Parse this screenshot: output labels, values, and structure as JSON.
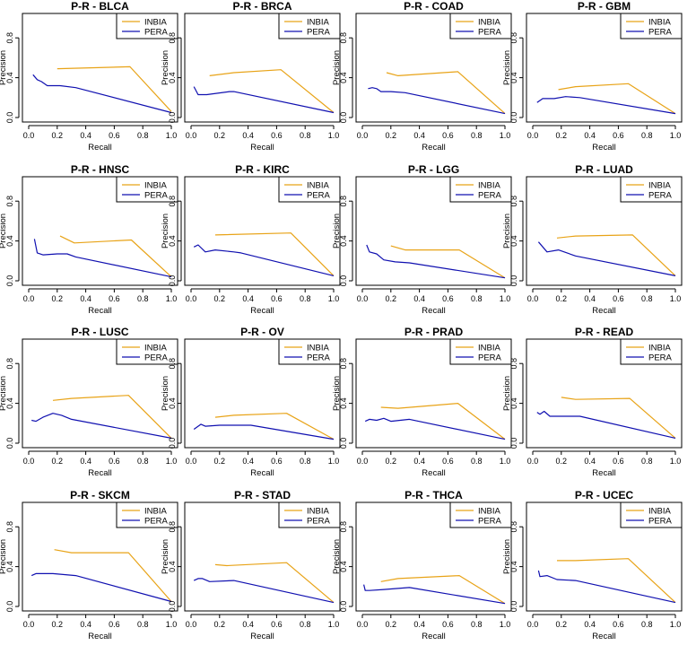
{
  "colors": {
    "inbia": "#E8A317",
    "pera": "#1010B0",
    "axis": "#000000"
  },
  "chart_data": [
    {
      "type": "line",
      "title": "P-R - BLCA",
      "xlabel": "Recall",
      "ylabel": "Precision",
      "xlim": [
        0,
        1
      ],
      "ylim": [
        0,
        1
      ],
      "xticks": [
        "0.0",
        "0.2",
        "0.4",
        "0.6",
        "0.8",
        "1.0"
      ],
      "yticks": [
        "0.0",
        "0.4",
        "0.8"
      ],
      "legend": [
        "INBIA",
        "PERA"
      ],
      "legend_position": "top-right",
      "series": [
        {
          "name": "INBIA",
          "x": [
            0.2,
            0.71,
            1.0
          ],
          "y": [
            0.49,
            0.51,
            0.06
          ]
        },
        {
          "name": "PERA",
          "x": [
            0.03,
            0.06,
            0.09,
            0.13,
            0.22,
            0.33,
            1.0
          ],
          "y": [
            0.43,
            0.38,
            0.36,
            0.32,
            0.32,
            0.3,
            0.05
          ]
        }
      ]
    },
    {
      "type": "line",
      "title": "P-R - BRCA",
      "xlabel": "Recall",
      "ylabel": "Precision",
      "xlim": [
        0,
        1
      ],
      "ylim": [
        0,
        1
      ],
      "xticks": [
        "0.0",
        "0.2",
        "0.4",
        "0.6",
        "0.8",
        "1.0"
      ],
      "yticks": [
        "0.0",
        "0.4",
        "0.8"
      ],
      "legend": [
        "INBIA",
        "PERA"
      ],
      "legend_position": "top-right",
      "series": [
        {
          "name": "INBIA",
          "x": [
            0.13,
            0.3,
            0.63,
            1.0
          ],
          "y": [
            0.42,
            0.45,
            0.48,
            0.05
          ]
        },
        {
          "name": "PERA",
          "x": [
            0.02,
            0.05,
            0.11,
            0.27,
            0.3,
            1.0
          ],
          "y": [
            0.31,
            0.23,
            0.23,
            0.26,
            0.26,
            0.05
          ]
        }
      ]
    },
    {
      "type": "line",
      "title": "P-R - COAD",
      "xlabel": "Recall",
      "ylabel": "Precision",
      "xlim": [
        0,
        1
      ],
      "ylim": [
        0,
        1
      ],
      "xticks": [
        "0.0",
        "0.2",
        "0.4",
        "0.6",
        "0.8",
        "1.0"
      ],
      "yticks": [
        "0.0",
        "0.4",
        "0.8"
      ],
      "legend": [
        "INBIA",
        "PERA"
      ],
      "legend_position": "top-right",
      "series": [
        {
          "name": "INBIA",
          "x": [
            0.17,
            0.25,
            0.67,
            1.0
          ],
          "y": [
            0.45,
            0.42,
            0.46,
            0.04
          ]
        },
        {
          "name": "PERA",
          "x": [
            0.04,
            0.07,
            0.1,
            0.13,
            0.2,
            0.3,
            1.0
          ],
          "y": [
            0.29,
            0.3,
            0.29,
            0.26,
            0.26,
            0.25,
            0.04
          ]
        }
      ]
    },
    {
      "type": "line",
      "title": "P-R - GBM",
      "xlabel": "Recall",
      "ylabel": "Precision",
      "xlim": [
        0,
        1
      ],
      "ylim": [
        0,
        1
      ],
      "xticks": [
        "0.0",
        "0.2",
        "0.4",
        "0.6",
        "0.8",
        "1.0"
      ],
      "yticks": [
        "0.0",
        "0.4",
        "0.8"
      ],
      "legend": [
        "INBIA",
        "PERA"
      ],
      "legend_position": "top-right",
      "series": [
        {
          "name": "INBIA",
          "x": [
            0.18,
            0.3,
            0.67,
            1.0
          ],
          "y": [
            0.28,
            0.31,
            0.34,
            0.04
          ]
        },
        {
          "name": "PERA",
          "x": [
            0.03,
            0.07,
            0.15,
            0.23,
            0.33,
            1.0
          ],
          "y": [
            0.15,
            0.19,
            0.19,
            0.21,
            0.2,
            0.04
          ]
        }
      ]
    },
    {
      "type": "line",
      "title": "P-R - HNSC",
      "xlabel": "Recall",
      "ylabel": "Precision",
      "xlim": [
        0,
        1
      ],
      "ylim": [
        0,
        1
      ],
      "xticks": [
        "0.0",
        "0.2",
        "0.4",
        "0.6",
        "0.8",
        "1.0"
      ],
      "yticks": [
        "0.0",
        "0.4",
        "0.8"
      ],
      "legend": [
        "INBIA",
        "PERA"
      ],
      "legend_position": "top-right",
      "series": [
        {
          "name": "INBIA",
          "x": [
            0.22,
            0.32,
            0.72,
            1.0
          ],
          "y": [
            0.45,
            0.38,
            0.41,
            0.04
          ]
        },
        {
          "name": "PERA",
          "x": [
            0.04,
            0.06,
            0.1,
            0.2,
            0.27,
            0.33,
            1.0
          ],
          "y": [
            0.42,
            0.28,
            0.26,
            0.27,
            0.27,
            0.24,
            0.04
          ]
        }
      ]
    },
    {
      "type": "line",
      "title": "P-R - KIRC",
      "xlabel": "Recall",
      "ylabel": "Precision",
      "xlim": [
        0,
        1
      ],
      "ylim": [
        0,
        1
      ],
      "xticks": [
        "0.0",
        "0.2",
        "0.4",
        "0.6",
        "0.8",
        "1.0"
      ],
      "yticks": [
        "0.0",
        "0.4",
        "0.8"
      ],
      "legend": [
        "INBIA",
        "PERA"
      ],
      "legend_position": "top-right",
      "series": [
        {
          "name": "INBIA",
          "x": [
            0.17,
            0.7,
            1.0
          ],
          "y": [
            0.46,
            0.48,
            0.05
          ]
        },
        {
          "name": "PERA",
          "x": [
            0.02,
            0.05,
            0.1,
            0.17,
            0.3,
            0.35,
            1.0
          ],
          "y": [
            0.34,
            0.36,
            0.29,
            0.31,
            0.29,
            0.28,
            0.05
          ]
        }
      ]
    },
    {
      "type": "line",
      "title": "P-R - LGG",
      "xlabel": "Recall",
      "ylabel": "Precision",
      "xlim": [
        0,
        1
      ],
      "ylim": [
        0,
        1
      ],
      "xticks": [
        "0.0",
        "0.2",
        "0.4",
        "0.6",
        "0.8",
        "1.0"
      ],
      "yticks": [
        "0.0",
        "0.4",
        "0.8"
      ],
      "legend": [
        "INBIA",
        "PERA"
      ],
      "legend_position": "top-right",
      "series": [
        {
          "name": "INBIA",
          "x": [
            0.2,
            0.3,
            0.68,
            1.0
          ],
          "y": [
            0.35,
            0.31,
            0.31,
            0.03
          ]
        },
        {
          "name": "PERA",
          "x": [
            0.03,
            0.05,
            0.1,
            0.15,
            0.23,
            0.33,
            1.0
          ],
          "y": [
            0.36,
            0.29,
            0.27,
            0.21,
            0.19,
            0.18,
            0.03
          ]
        }
      ]
    },
    {
      "type": "line",
      "title": "P-R - LUAD",
      "xlabel": "Recall",
      "ylabel": "Precision",
      "xlim": [
        0,
        1
      ],
      "ylim": [
        0,
        1
      ],
      "xticks": [
        "0.0",
        "0.2",
        "0.4",
        "0.6",
        "0.8",
        "1.0"
      ],
      "yticks": [
        "0.0",
        "0.4",
        "0.8"
      ],
      "legend": [
        "INBIA",
        "PERA"
      ],
      "legend_position": "top-right",
      "series": [
        {
          "name": "INBIA",
          "x": [
            0.17,
            0.3,
            0.7,
            1.0
          ],
          "y": [
            0.43,
            0.45,
            0.46,
            0.05
          ]
        },
        {
          "name": "PERA",
          "x": [
            0.04,
            0.1,
            0.18,
            0.3,
            1.0
          ],
          "y": [
            0.39,
            0.29,
            0.31,
            0.25,
            0.05
          ]
        }
      ]
    },
    {
      "type": "line",
      "title": "P-R - LUSC",
      "xlabel": "Recall",
      "ylabel": "Precision",
      "xlim": [
        0,
        1
      ],
      "ylim": [
        0,
        1
      ],
      "xticks": [
        "0.0",
        "0.2",
        "0.4",
        "0.6",
        "0.8",
        "1.0"
      ],
      "yticks": [
        "0.0",
        "0.4",
        "0.8"
      ],
      "legend": [
        "INBIA",
        "PERA"
      ],
      "legend_position": "top-right",
      "series": [
        {
          "name": "INBIA",
          "x": [
            0.17,
            0.3,
            0.7,
            1.0
          ],
          "y": [
            0.43,
            0.45,
            0.48,
            0.05
          ]
        },
        {
          "name": "PERA",
          "x": [
            0.02,
            0.05,
            0.1,
            0.17,
            0.23,
            0.3,
            1.0
          ],
          "y": [
            0.23,
            0.22,
            0.26,
            0.3,
            0.28,
            0.24,
            0.05
          ]
        }
      ]
    },
    {
      "type": "line",
      "title": "P-R - OV",
      "xlabel": "Recall",
      "ylabel": "Precision",
      "xlim": [
        0,
        1
      ],
      "ylim": [
        0,
        1
      ],
      "xticks": [
        "0.0",
        "0.2",
        "0.4",
        "0.6",
        "0.8",
        "1.0"
      ],
      "yticks": [
        "0.0",
        "0.4",
        "0.8"
      ],
      "legend": [
        "INBIA",
        "PERA"
      ],
      "legend_position": "top-right",
      "series": [
        {
          "name": "INBIA",
          "x": [
            0.17,
            0.3,
            0.67,
            1.0
          ],
          "y": [
            0.26,
            0.28,
            0.3,
            0.04
          ]
        },
        {
          "name": "PERA",
          "x": [
            0.02,
            0.07,
            0.1,
            0.2,
            0.27,
            0.42,
            1.0
          ],
          "y": [
            0.14,
            0.19,
            0.17,
            0.18,
            0.18,
            0.18,
            0.04
          ]
        }
      ]
    },
    {
      "type": "line",
      "title": "P-R - PRAD",
      "xlabel": "Recall",
      "ylabel": "Precision",
      "xlim": [
        0,
        1
      ],
      "ylim": [
        0,
        1
      ],
      "xticks": [
        "0.0",
        "0.2",
        "0.4",
        "0.6",
        "0.8",
        "1.0"
      ],
      "yticks": [
        "0.0",
        "0.4",
        "0.8"
      ],
      "legend": [
        "INBIA",
        "PERA"
      ],
      "legend_position": "top-right",
      "series": [
        {
          "name": "INBIA",
          "x": [
            0.13,
            0.25,
            0.67,
            1.0
          ],
          "y": [
            0.36,
            0.35,
            0.4,
            0.04
          ]
        },
        {
          "name": "PERA",
          "x": [
            0.02,
            0.05,
            0.1,
            0.15,
            0.2,
            0.33,
            1.0
          ],
          "y": [
            0.22,
            0.24,
            0.23,
            0.25,
            0.22,
            0.24,
            0.04
          ]
        }
      ]
    },
    {
      "type": "line",
      "title": "P-R - READ",
      "xlabel": "Recall",
      "ylabel": "Precision",
      "xlim": [
        0,
        1
      ],
      "ylim": [
        0,
        1
      ],
      "xticks": [
        "0.0",
        "0.2",
        "0.4",
        "0.6",
        "0.8",
        "1.0"
      ],
      "yticks": [
        "0.0",
        "0.4",
        "0.8"
      ],
      "legend": [
        "INBIA",
        "PERA"
      ],
      "legend_position": "top-right",
      "series": [
        {
          "name": "INBIA",
          "x": [
            0.2,
            0.3,
            0.68,
            1.0
          ],
          "y": [
            0.46,
            0.44,
            0.45,
            0.05
          ]
        },
        {
          "name": "PERA",
          "x": [
            0.03,
            0.05,
            0.08,
            0.12,
            0.2,
            0.33,
            1.0
          ],
          "y": [
            0.31,
            0.29,
            0.32,
            0.27,
            0.27,
            0.27,
            0.05
          ]
        }
      ]
    },
    {
      "type": "line",
      "title": "P-R - SKCM",
      "xlabel": "Recall",
      "ylabel": "Precision",
      "xlim": [
        0,
        1
      ],
      "ylim": [
        0,
        1
      ],
      "xticks": [
        "0.0",
        "0.2",
        "0.4",
        "0.6",
        "0.8",
        "1.0"
      ],
      "yticks": [
        "0.0",
        "0.4",
        "0.8"
      ],
      "legend": [
        "INBIA",
        "PERA"
      ],
      "legend_position": "top-right",
      "series": [
        {
          "name": "INBIA",
          "x": [
            0.18,
            0.3,
            0.7,
            1.0
          ],
          "y": [
            0.57,
            0.54,
            0.54,
            0.05
          ]
        },
        {
          "name": "PERA",
          "x": [
            0.02,
            0.05,
            0.1,
            0.17,
            0.33,
            1.0
          ],
          "y": [
            0.31,
            0.33,
            0.33,
            0.33,
            0.31,
            0.05
          ]
        }
      ]
    },
    {
      "type": "line",
      "title": "P-R - STAD",
      "xlabel": "Recall",
      "ylabel": "Precision",
      "xlim": [
        0,
        1
      ],
      "ylim": [
        0,
        1
      ],
      "xticks": [
        "0.0",
        "0.2",
        "0.4",
        "0.6",
        "0.8",
        "1.0"
      ],
      "yticks": [
        "0.0",
        "0.4",
        "0.8"
      ],
      "legend": [
        "INBIA",
        "PERA"
      ],
      "legend_position": "top-right",
      "series": [
        {
          "name": "INBIA",
          "x": [
            0.17,
            0.25,
            0.67,
            1.0
          ],
          "y": [
            0.42,
            0.41,
            0.44,
            0.04
          ]
        },
        {
          "name": "PERA",
          "x": [
            0.02,
            0.05,
            0.08,
            0.13,
            0.3,
            1.0
          ],
          "y": [
            0.26,
            0.28,
            0.28,
            0.25,
            0.26,
            0.04
          ]
        }
      ]
    },
    {
      "type": "line",
      "title": "P-R - THCA",
      "xlabel": "Recall",
      "ylabel": "Precision",
      "xlim": [
        0,
        1
      ],
      "ylim": [
        0,
        1
      ],
      "xticks": [
        "0.0",
        "0.2",
        "0.4",
        "0.6",
        "0.8",
        "1.0"
      ],
      "yticks": [
        "0.0",
        "0.4",
        "0.8"
      ],
      "legend": [
        "INBIA",
        "PERA"
      ],
      "legend_position": "top-right",
      "series": [
        {
          "name": "INBIA",
          "x": [
            0.13,
            0.25,
            0.68,
            1.0
          ],
          "y": [
            0.25,
            0.28,
            0.31,
            0.03
          ]
        },
        {
          "name": "PERA",
          "x": [
            0.01,
            0.02,
            0.05,
            0.15,
            0.33,
            1.0
          ],
          "y": [
            0.22,
            0.16,
            0.16,
            0.17,
            0.19,
            0.03
          ]
        }
      ]
    },
    {
      "type": "line",
      "title": "P-R - UCEC",
      "xlabel": "Recall",
      "ylabel": "Precision",
      "xlim": [
        0,
        1
      ],
      "ylim": [
        0,
        1
      ],
      "xticks": [
        "0.0",
        "0.2",
        "0.4",
        "0.6",
        "0.8",
        "1.0"
      ],
      "yticks": [
        "0.0",
        "0.4",
        "0.8"
      ],
      "legend": [
        "INBIA",
        "PERA"
      ],
      "legend_position": "top-right",
      "series": [
        {
          "name": "INBIA",
          "x": [
            0.17,
            0.3,
            0.67,
            1.0
          ],
          "y": [
            0.46,
            0.46,
            0.48,
            0.04
          ]
        },
        {
          "name": "PERA",
          "x": [
            0.04,
            0.05,
            0.1,
            0.17,
            0.3,
            1.0
          ],
          "y": [
            0.36,
            0.3,
            0.31,
            0.27,
            0.26,
            0.04
          ]
        }
      ]
    }
  ]
}
